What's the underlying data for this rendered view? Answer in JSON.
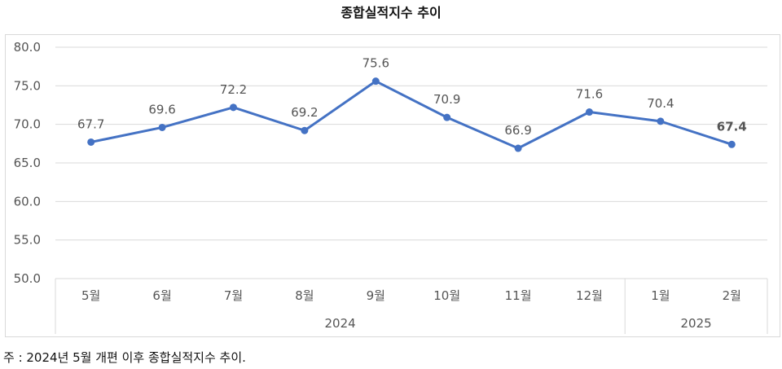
{
  "title": "종합실적지수 추이",
  "note": "주 : 2024년 5월 개편 이후 종합실적지수 추이.",
  "chart_data": {
    "type": "line",
    "title": "종합실적지수 추이",
    "categories": [
      "5월",
      "6월",
      "7월",
      "8월",
      "9월",
      "10월",
      "11월",
      "12월",
      "1월",
      "2월"
    ],
    "years": [
      {
        "label": "2024",
        "from": 0,
        "to": 7
      },
      {
        "label": "2025",
        "from": 8,
        "to": 9
      }
    ],
    "series": [
      {
        "values": [
          67.7,
          69.6,
          72.2,
          69.2,
          75.6,
          70.9,
          66.9,
          71.6,
          70.4,
          67.4
        ],
        "labels": [
          "67.7",
          "69.6",
          "72.2",
          "69.2",
          "75.6",
          "70.9",
          "66.9",
          "71.6",
          "70.4",
          "67.4"
        ],
        "color": "#4472c4"
      }
    ],
    "yticks": [
      "80.0",
      "75.0",
      "70.0",
      "65.0",
      "60.0",
      "55.0",
      "50.0"
    ],
    "ylim": [
      50,
      80
    ],
    "grid": true,
    "bold_last_label": true
  }
}
